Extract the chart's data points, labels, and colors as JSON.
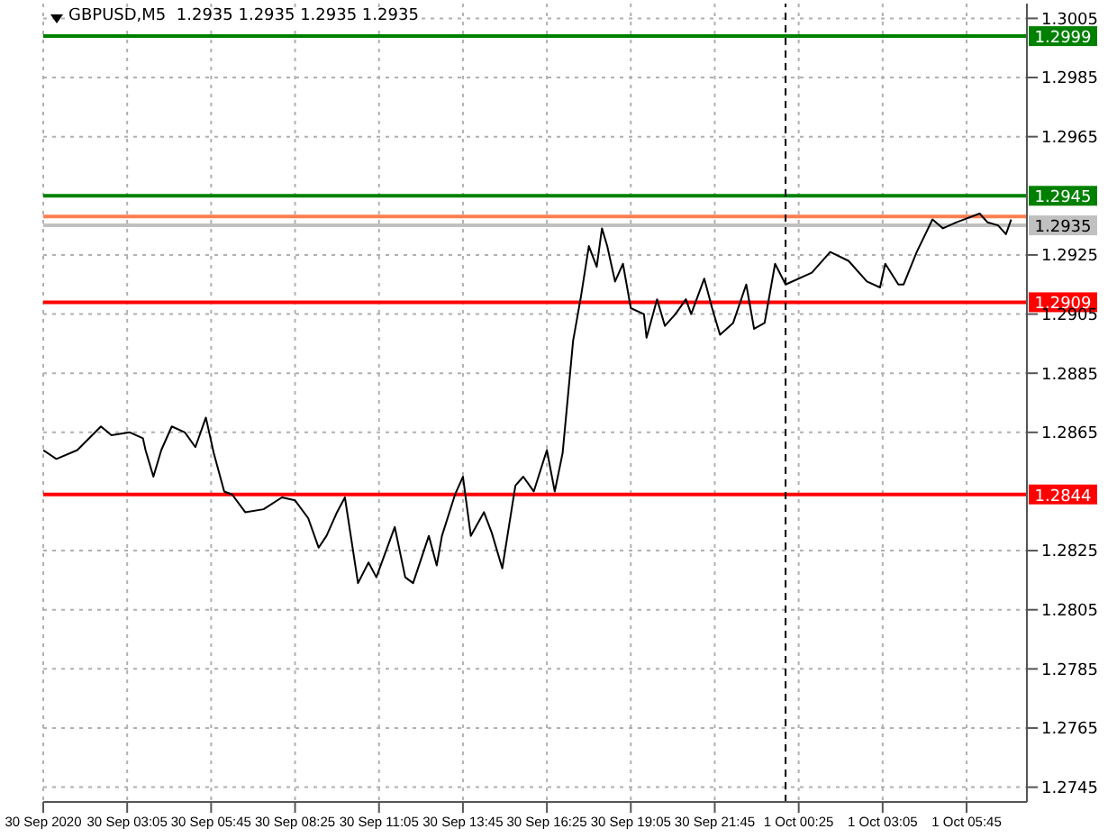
{
  "chart_data": {
    "type": "line",
    "title": "GBPUSD,M5  1.2935 1.2935 1.2935 1.2935",
    "xlim": [
      "2020-09-30T00:25",
      "2020-10-01T07:40"
    ],
    "xticks": [
      {
        "value": "2020-09-30T00:25",
        "label": "30 Sep 2020"
      },
      {
        "value": "2020-09-30T03:05",
        "label": "30 Sep 03:05"
      },
      {
        "value": "2020-09-30T05:45",
        "label": "30 Sep 05:45"
      },
      {
        "value": "2020-09-30T08:25",
        "label": "30 Sep 08:25"
      },
      {
        "value": "2020-09-30T11:05",
        "label": "30 Sep 11:05"
      },
      {
        "value": "2020-09-30T13:45",
        "label": "30 Sep 13:45"
      },
      {
        "value": "2020-09-30T16:25",
        "label": "30 Sep 16:25"
      },
      {
        "value": "2020-09-30T19:05",
        "label": "30 Sep 19:05"
      },
      {
        "value": "2020-09-30T21:45",
        "label": "30 Sep 21:45"
      },
      {
        "value": "2020-10-01T00:25",
        "label": "1 Oct 00:25"
      },
      {
        "value": "2020-10-01T03:05",
        "label": "1 Oct 03:05"
      },
      {
        "value": "2020-10-01T05:45",
        "label": "1 Oct 05:45"
      }
    ],
    "ylim": [
      1.274,
      1.301
    ],
    "yticks": [
      1.3005,
      1.2985,
      1.2965,
      1.2925,
      1.2905,
      1.2885,
      1.2865,
      1.2825,
      1.2805,
      1.2785,
      1.2765,
      1.2745
    ],
    "grid": true,
    "marker": "none",
    "line_style": "solid",
    "series": [
      {
        "color": "#000000",
        "x": [
          "2020-09-30T00:25",
          "2020-09-30T00:50",
          "2020-09-30T01:30",
          "2020-09-30T02:15",
          "2020-09-30T02:35",
          "2020-09-30T03:10",
          "2020-09-30T03:35",
          "2020-09-30T03:40",
          "2020-09-30T03:55",
          "2020-09-30T04:10",
          "2020-09-30T04:30",
          "2020-09-30T04:55",
          "2020-09-30T05:15",
          "2020-09-30T05:35",
          "2020-09-30T05:50",
          "2020-09-30T06:10",
          "2020-09-30T06:25",
          "2020-09-30T06:50",
          "2020-09-30T07:25",
          "2020-09-30T08:00",
          "2020-09-30T08:25",
          "2020-09-30T08:50",
          "2020-09-30T09:10",
          "2020-09-30T09:25",
          "2020-09-30T09:45",
          "2020-09-30T10:00",
          "2020-09-30T10:25",
          "2020-09-30T10:45",
          "2020-09-30T11:00",
          "2020-09-30T11:35",
          "2020-09-30T11:55",
          "2020-09-30T12:10",
          "2020-09-30T12:40",
          "2020-09-30T12:55",
          "2020-09-30T13:05",
          "2020-09-30T13:30",
          "2020-09-30T13:45",
          "2020-09-30T14:00",
          "2020-09-30T14:25",
          "2020-09-30T14:40",
          "2020-09-30T15:00",
          "2020-09-30T15:25",
          "2020-09-30T15:40",
          "2020-09-30T16:00",
          "2020-09-30T16:25",
          "2020-09-30T16:40",
          "2020-09-30T16:55",
          "2020-09-30T17:15",
          "2020-09-30T17:30",
          "2020-09-30T17:45",
          "2020-09-30T18:00",
          "2020-09-30T18:10",
          "2020-09-30T18:20",
          "2020-09-30T18:35",
          "2020-09-30T18:50",
          "2020-09-30T19:05",
          "2020-09-30T19:30",
          "2020-09-30T19:35",
          "2020-09-30T19:55",
          "2020-09-30T20:10",
          "2020-09-30T20:30",
          "2020-09-30T20:50",
          "2020-09-30T21:00",
          "2020-09-30T21:25",
          "2020-09-30T21:40",
          "2020-09-30T21:55",
          "2020-09-30T22:20",
          "2020-09-30T22:45",
          "2020-09-30T23:00",
          "2020-09-30T23:20",
          "2020-09-30T23:40",
          "2020-10-01T00:00",
          "2020-10-01T00:50",
          "2020-10-01T01:25",
          "2020-10-01T02:00",
          "2020-10-01T02:35",
          "2020-10-01T03:00",
          "2020-10-01T03:10",
          "2020-10-01T03:35",
          "2020-10-01T03:45",
          "2020-10-01T04:10",
          "2020-10-01T04:40",
          "2020-10-01T05:00",
          "2020-10-01T05:25",
          "2020-10-01T06:10",
          "2020-10-01T06:25",
          "2020-10-01T06:45",
          "2020-10-01T07:00",
          "2020-10-01T07:10"
        ],
        "values": [
          1.2859,
          1.2856,
          1.2859,
          1.2867,
          1.2864,
          1.2865,
          1.2863,
          1.2859,
          1.285,
          1.2859,
          1.2867,
          1.2865,
          1.286,
          1.287,
          1.2858,
          1.2845,
          1.2844,
          1.2838,
          1.2839,
          1.2843,
          1.2842,
          1.2836,
          1.2826,
          1.283,
          1.2838,
          1.2843,
          1.2814,
          1.2821,
          1.2816,
          1.2833,
          1.2816,
          1.2814,
          1.283,
          1.282,
          1.283,
          1.2844,
          1.285,
          1.283,
          1.2838,
          1.2831,
          1.2819,
          1.2847,
          1.285,
          1.2845,
          1.2859,
          1.2845,
          1.2858,
          1.2896,
          1.2911,
          1.2928,
          1.2921,
          1.2934,
          1.2928,
          1.2916,
          1.2922,
          1.2907,
          1.2905,
          1.2897,
          1.291,
          1.2901,
          1.2905,
          1.291,
          1.2905,
          1.2917,
          1.2907,
          1.2898,
          1.2902,
          1.2915,
          1.29,
          1.2902,
          1.2922,
          1.2915,
          1.2919,
          1.2926,
          1.2923,
          1.2916,
          1.2914,
          1.2922,
          1.2915,
          1.2915,
          1.2926,
          1.2937,
          1.2934,
          1.2936,
          1.2939,
          1.2936,
          1.2935,
          1.2932,
          1.2937
        ]
      }
    ],
    "ref_lines": [
      {
        "axis": "y",
        "value": 1.2999,
        "label": "1.2999",
        "color": "#008000"
      },
      {
        "axis": "y",
        "value": 1.2945,
        "label": "1.2945",
        "color": "#008000"
      },
      {
        "axis": "y",
        "value": 1.2938,
        "color": "#ff7f50"
      },
      {
        "axis": "y",
        "value": 1.2935,
        "label": "1.2935",
        "color": "#c0c0c0"
      },
      {
        "axis": "y",
        "value": 1.2909,
        "label": "1.2909",
        "color": "#ff0000"
      },
      {
        "axis": "y",
        "value": 1.2844,
        "label": "1.2844",
        "color": "#ff0000"
      },
      {
        "axis": "x",
        "value": "2020-10-01T00:00",
        "color": "#000000",
        "line_style": "dashed"
      }
    ]
  }
}
